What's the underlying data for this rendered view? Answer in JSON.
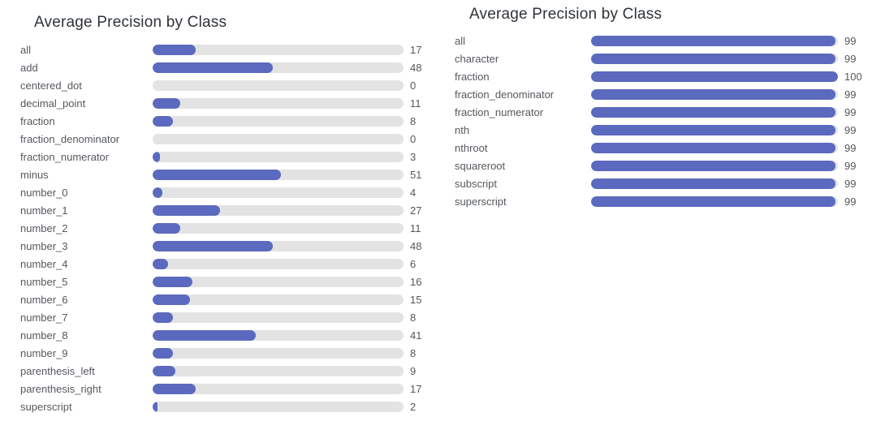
{
  "page": {
    "background": "#ffffff"
  },
  "colors": {
    "bar": "#5b6abe",
    "track": "#e3e3e3",
    "title_text": "#2e3338",
    "label_text": "#55585e",
    "value_text": "#54575c"
  },
  "chart_data": [
    {
      "type": "bar",
      "orientation": "horizontal",
      "title": "Average Precision by Class",
      "categories": [
        "all",
        "add",
        "centered_dot",
        "decimal_point",
        "fraction",
        "fraction_denominator",
        "fraction_numerator",
        "minus",
        "number_0",
        "number_1",
        "number_2",
        "number_3",
        "number_4",
        "number_5",
        "number_6",
        "number_7",
        "number_8",
        "number_9",
        "parenthesis_left",
        "parenthesis_right",
        "superscript"
      ],
      "values": [
        17,
        48,
        0,
        11,
        8,
        0,
        3,
        51,
        4,
        27,
        11,
        48,
        6,
        16,
        15,
        8,
        41,
        8,
        9,
        17,
        2
      ],
      "xlabel": "",
      "ylabel": "",
      "xlim": [
        0,
        100
      ],
      "grid": false,
      "legend": false,
      "value_labels": "right"
    },
    {
      "type": "bar",
      "orientation": "horizontal",
      "title": "Average Precision by Class",
      "categories": [
        "all",
        "character",
        "fraction",
        "fraction_denominator",
        "fraction_numerator",
        "nth",
        "nthroot",
        "squareroot",
        "subscript",
        "superscript"
      ],
      "values": [
        99,
        99,
        100,
        99,
        99,
        99,
        99,
        99,
        99,
        99
      ],
      "xlabel": "",
      "ylabel": "",
      "xlim": [
        0,
        100
      ],
      "grid": false,
      "legend": false,
      "value_labels": "right"
    }
  ]
}
